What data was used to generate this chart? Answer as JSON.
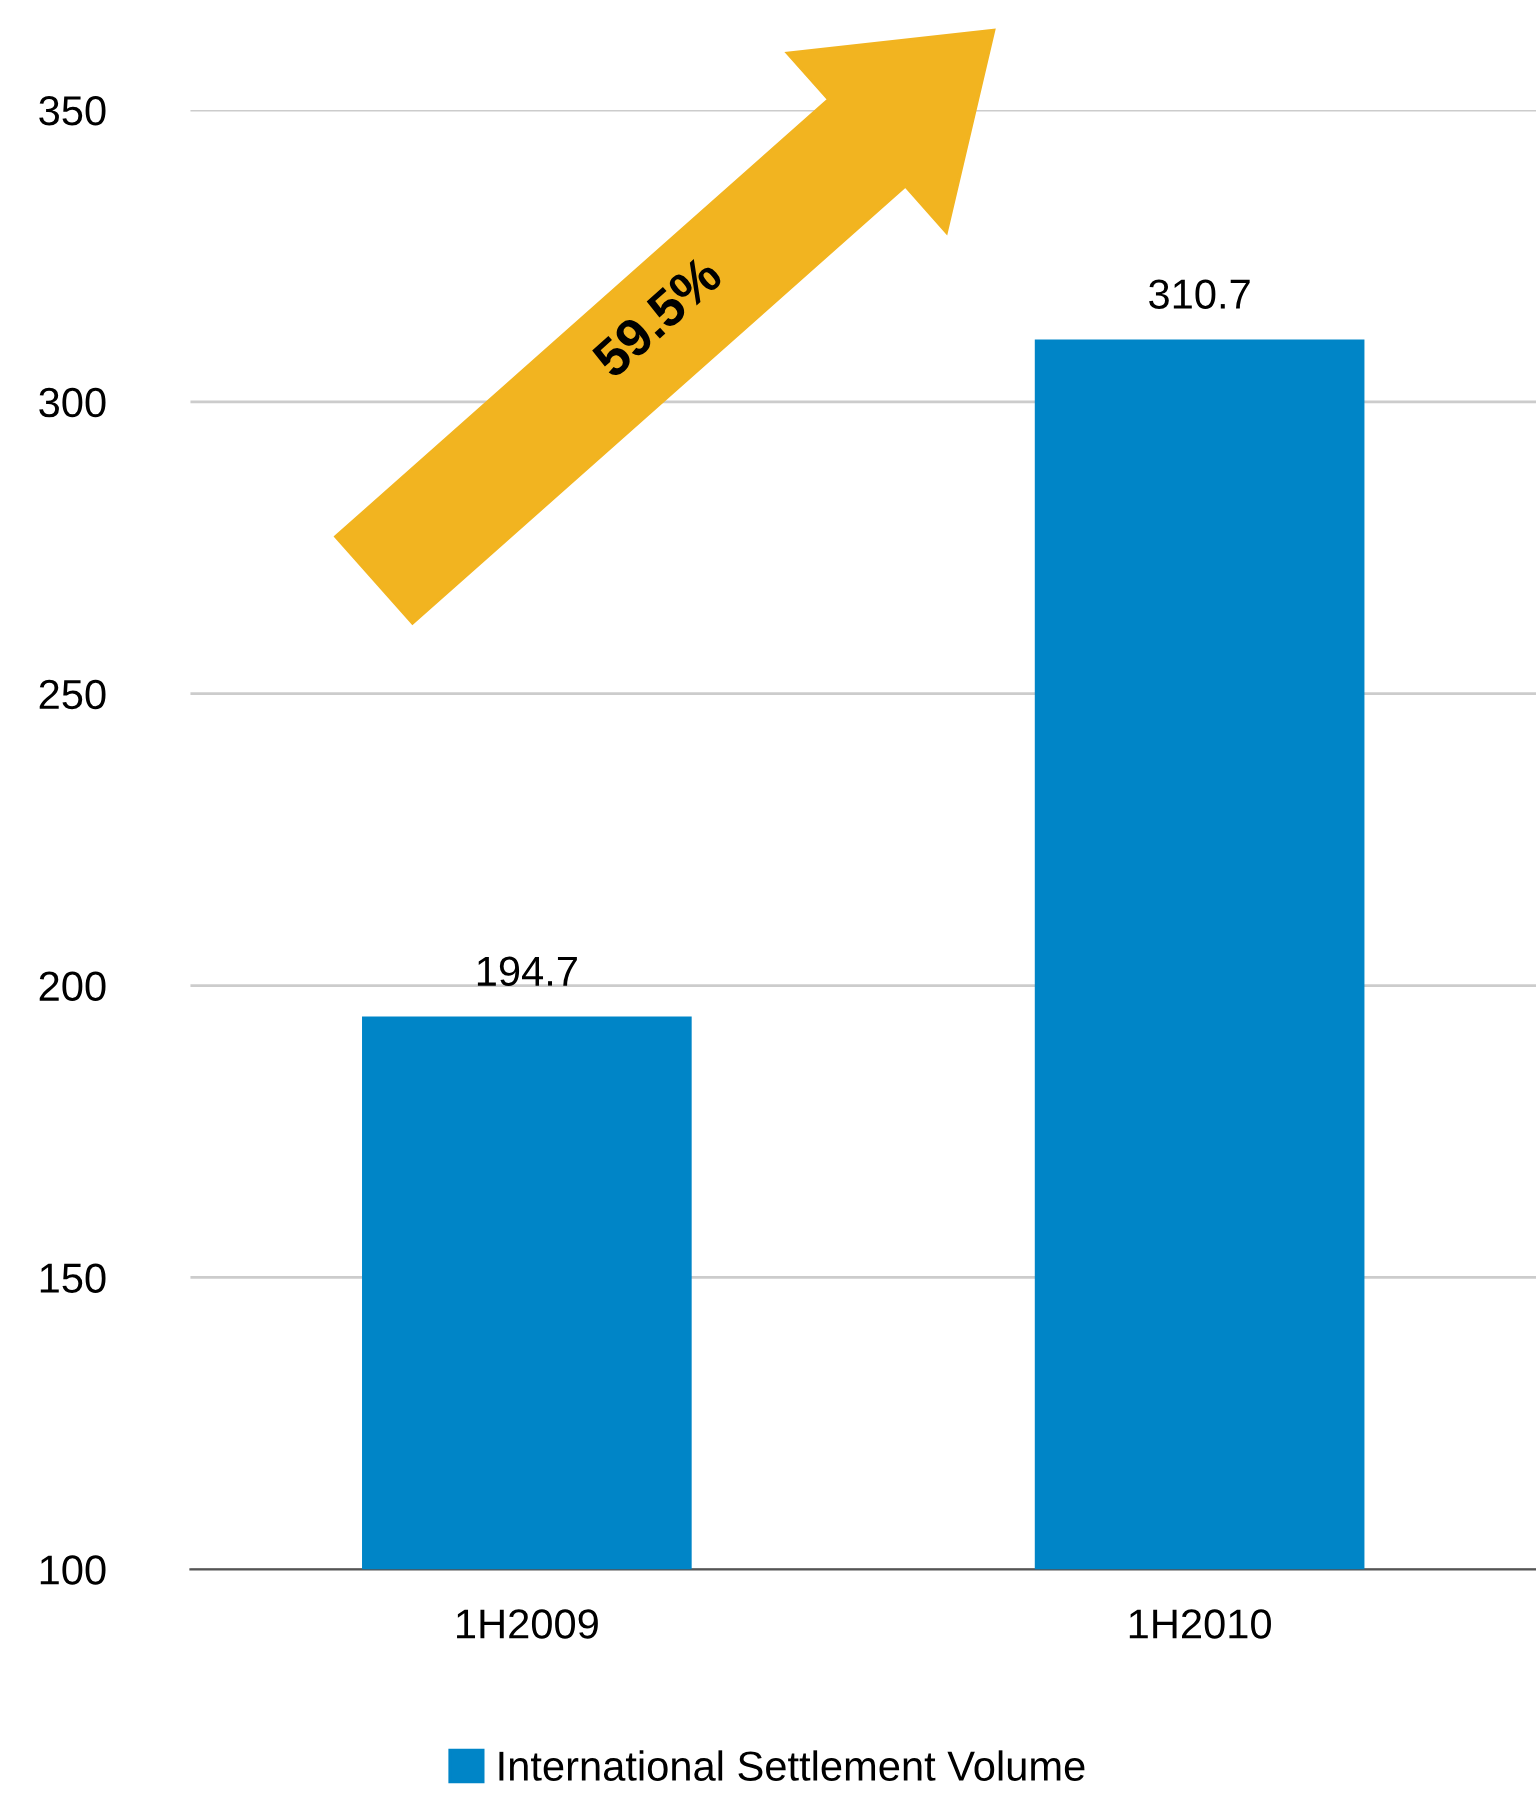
{
  "chart_data": {
    "type": "bar",
    "categories": [
      "1H2009",
      "1H2010"
    ],
    "series": [
      {
        "name": "International Settlement Volume",
        "color": "#0085c7",
        "values": [
          194.7,
          310.7
        ]
      }
    ],
    "ylim": [
      100,
      350
    ],
    "yticks": [
      100,
      150,
      200,
      250,
      300,
      350
    ],
    "grid": "y",
    "legend": "bottom",
    "data_labels": true,
    "annotations": [
      "59.5%"
    ]
  }
}
